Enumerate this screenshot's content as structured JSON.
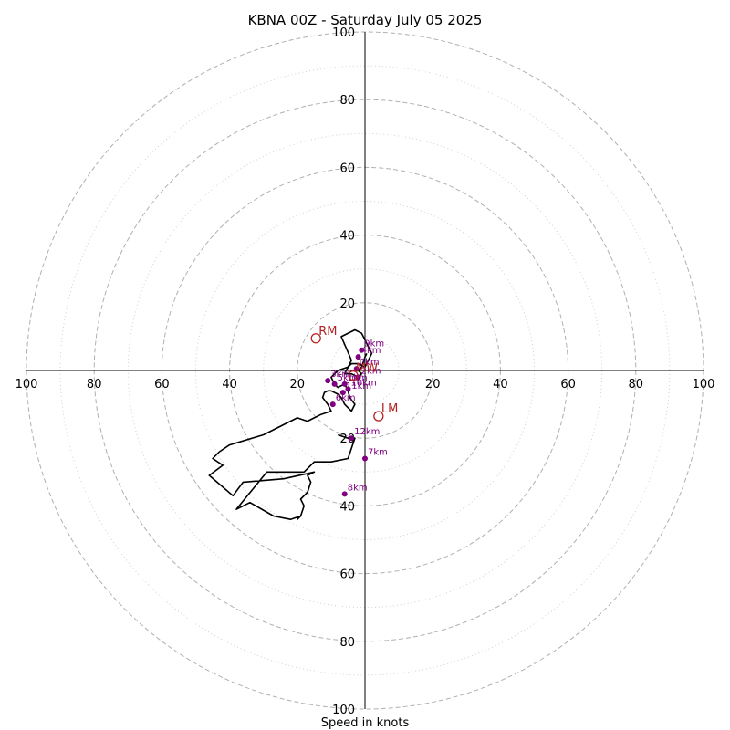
{
  "chart_data": {
    "type": "line",
    "title": "KBNA 00Z - Saturday July 05 2025",
    "xlabel": "Speed in knots",
    "ylabel": "",
    "xlim": [
      -100,
      100
    ],
    "ylim": [
      -100,
      100
    ],
    "rings_major": [
      20,
      40,
      60,
      80,
      100
    ],
    "rings_minor": [
      10,
      30,
      50,
      70,
      90
    ],
    "x_ticks": [
      "100",
      "80",
      "60",
      "40",
      "20",
      "20",
      "40",
      "60",
      "80",
      "100"
    ],
    "y_ticks": [
      "100",
      "80",
      "60",
      "40",
      "20",
      "20",
      "40",
      "60",
      "80",
      "100"
    ],
    "trace_color": "#000000",
    "height_marker_color": "#800080",
    "motion_marker_color": "#b22222",
    "grid_color": "#b0b0b0",
    "series": [
      {
        "x": [
          0.5,
          0,
          -1,
          -2,
          -1,
          -2,
          -4,
          -6,
          -4,
          -7,
          -3,
          -1,
          2,
          0,
          -2,
          -4,
          -5,
          -8,
          -9,
          -10,
          -9.5,
          -9,
          -8,
          -6,
          -5,
          -4.5,
          -3,
          -4,
          -5,
          -6,
          -6.5,
          -7,
          -8,
          -10,
          -11,
          -12,
          -12.5,
          -11,
          -10,
          -13,
          -15,
          -17,
          -20,
          -30,
          -40,
          -43,
          -45,
          -42,
          -46,
          -39,
          -36,
          -24,
          -15,
          -17,
          -16,
          -17,
          -19,
          -18,
          -19,
          -20,
          -19,
          -22,
          -27,
          -34,
          -38,
          -29,
          -18,
          -15,
          -10,
          -5,
          -3,
          -5,
          -8
        ],
        "y": [
          5,
          4,
          1,
          0,
          -1,
          -2,
          -1,
          -1,
          3,
          10,
          12,
          11,
          5,
          1,
          2,
          2,
          1,
          0,
          -1,
          -2,
          -3,
          -4,
          -5,
          -4,
          -6,
          -8,
          -10,
          -12,
          -11,
          -10,
          -9,
          -8,
          -7,
          -6,
          -6,
          -6.5,
          -8,
          -10,
          -12,
          -13,
          -14,
          -15,
          -14,
          -19,
          -22,
          -24,
          -26,
          -28,
          -31,
          -37,
          -33,
          -32,
          -30,
          -31,
          -33,
          -36,
          -38,
          -40,
          -43,
          -44,
          -43,
          -44,
          -43,
          -39,
          -41,
          -30,
          -30,
          -27,
          -27,
          -26,
          -20,
          -20,
          -19
        ]
      }
    ],
    "height_markers": [
      {
        "label": "0km",
        "x": -2.5,
        "y": 0.5
      },
      {
        "label": "1km",
        "x": -6,
        "y": -4
      },
      {
        "label": "2km",
        "x": -2,
        "y": -2
      },
      {
        "label": "3km",
        "x": -11,
        "y": -3
      },
      {
        "label": "4km",
        "x": -2,
        "y": 4
      },
      {
        "label": "5km",
        "x": -9,
        "y": -4
      },
      {
        "label": "6km",
        "x": -9.5,
        "y": -10
      },
      {
        "label": "7km",
        "x": 0,
        "y": -26
      },
      {
        "label": "8km",
        "x": -6,
        "y": -36.5
      },
      {
        "label": "9km",
        "x": -1,
        "y": 6
      },
      {
        "label": "10km",
        "x": -5,
        "y": -5.5
      },
      {
        "label": "11km",
        "x": -6.5,
        "y": -6.5
      },
      {
        "label": "12km",
        "x": -4,
        "y": -20
      }
    ],
    "storm_motion": [
      {
        "label": "RM",
        "x": -14.5,
        "y": 9.5
      },
      {
        "label": "LM",
        "x": 4,
        "y": -13.5
      },
      {
        "label": "MW",
        "x": -3.5,
        "y": -1.5
      }
    ]
  }
}
